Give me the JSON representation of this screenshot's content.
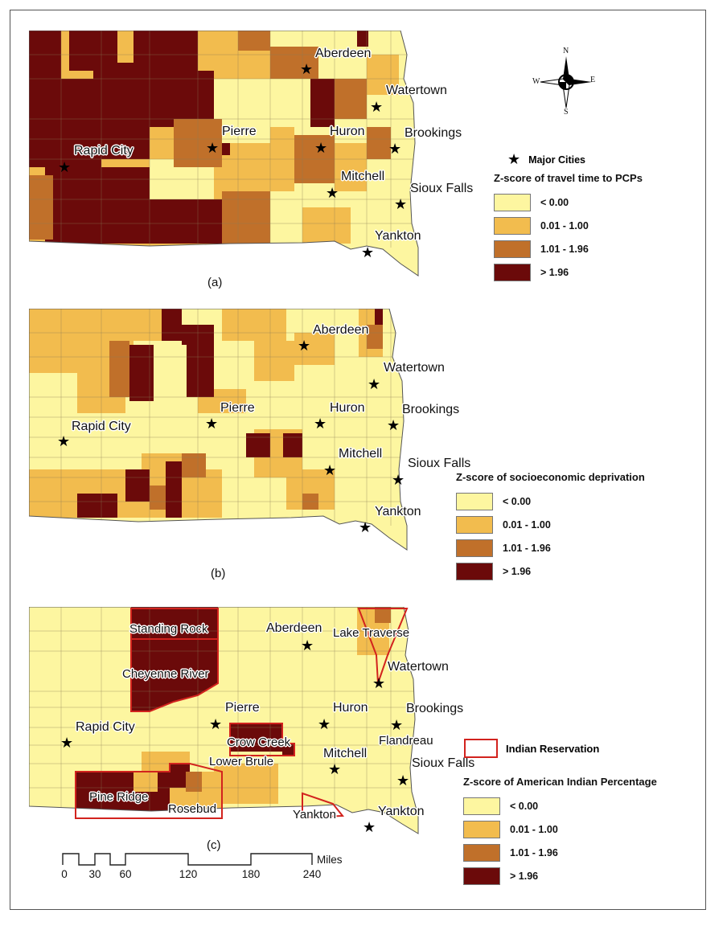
{
  "panels": [
    {
      "id": "a",
      "label": "(a)",
      "legend_title": "Z-score of travel time to PCPs",
      "cities": [
        "Aberdeen",
        "Watertown",
        "Brookings",
        "Huron",
        "Pierre",
        "Rapid City",
        "Mitchell",
        "Sioux Falls",
        "Yankton"
      ]
    },
    {
      "id": "b",
      "label": "(b)",
      "legend_title": "Z-score of socioeconomic deprivation",
      "cities": [
        "Aberdeen",
        "Watertown",
        "Brookings",
        "Huron",
        "Pierre",
        "Rapid City",
        "Mitchell",
        "Sioux Falls",
        "Yankton"
      ]
    },
    {
      "id": "c",
      "label": "(c)",
      "legend_title": "Z-score of American Indian Percentage",
      "cities": [
        "Aberdeen",
        "Watertown",
        "Brookings",
        "Huron",
        "Pierre",
        "Rapid City",
        "Mitchell",
        "Sioux Falls",
        "Yankton"
      ],
      "reservations": [
        "Standing Rock",
        "Cheyenne River",
        "Lake Traverse",
        "Crow Creek",
        "Lower Brule",
        "Flandreau",
        "Pine Ridge",
        "Rosebud",
        "Yankton"
      ]
    }
  ],
  "legend": {
    "major_cities": "Major Cities",
    "indian_reservation": "Indian Reservation",
    "classes": [
      {
        "label": "< 0.00",
        "color": "#fdf6a0"
      },
      {
        "label": "0.01 - 1.00",
        "color": "#f2bc4e"
      },
      {
        "label": "1.01 - 1.96",
        "color": "#c0702a"
      },
      {
        "label": "> 1.96",
        "color": "#6b0a0a"
      }
    ],
    "reservation_color": "#d2231e"
  },
  "compass": {
    "n": "N",
    "s": "S",
    "e": "E",
    "w": "W",
    "icon": "north-arrow-icon"
  },
  "scalebar": {
    "ticks": [
      "0",
      "30",
      "60",
      "120",
      "180",
      "240"
    ],
    "unit": "Miles"
  },
  "icons": {
    "city": "star-icon"
  }
}
